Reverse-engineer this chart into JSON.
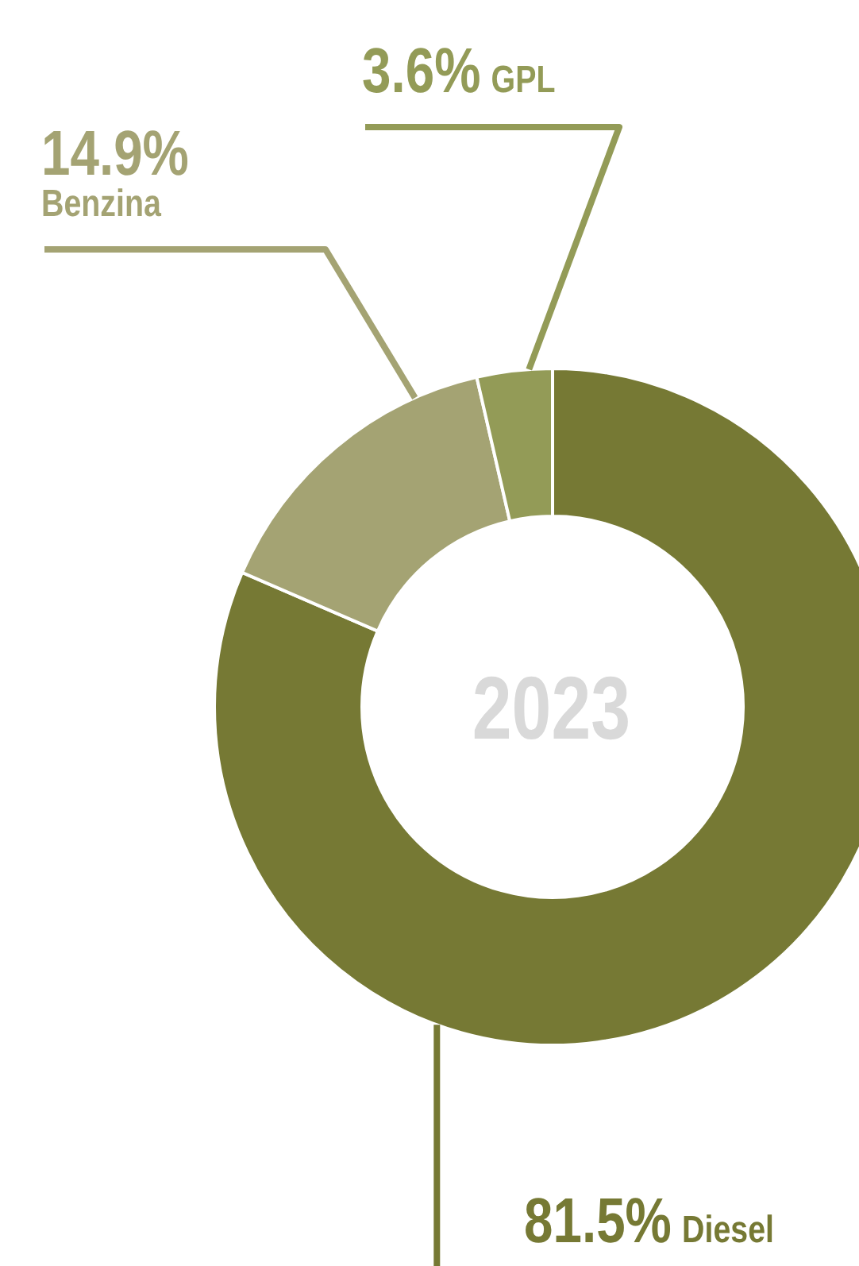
{
  "chart_data": {
    "type": "donut",
    "title": "2023",
    "categories": [
      "Diesel",
      "Benzina",
      "GPL"
    ],
    "values": [
      81.5,
      14.9,
      3.6
    ],
    "colors": [
      "#767934",
      "#a4a373",
      "#939b57"
    ],
    "value_labels": [
      "81.5%",
      "14.9%",
      "3.6%"
    ]
  }
}
